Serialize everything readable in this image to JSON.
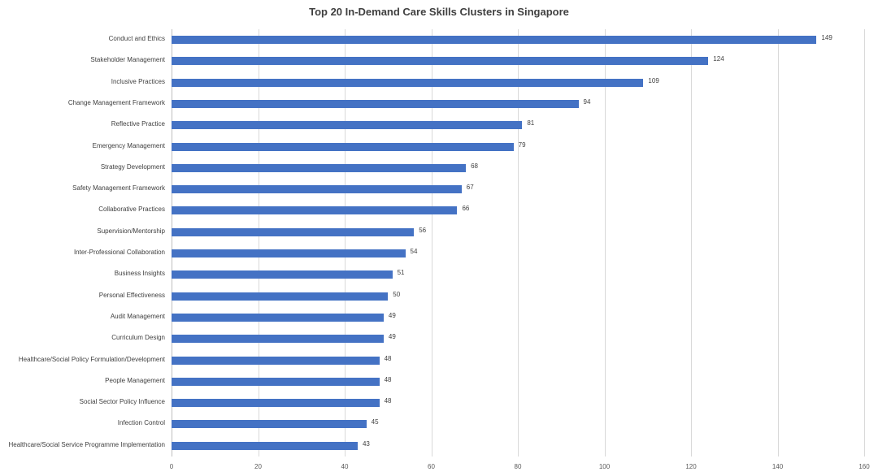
{
  "chart_data": {
    "type": "bar",
    "orientation": "horizontal",
    "title": "Top 20 In-Demand Care Skills Clusters in Singapore",
    "xlabel": "",
    "ylabel": "",
    "xlim": [
      0,
      160
    ],
    "xticks": [
      0,
      20,
      40,
      60,
      80,
      100,
      120,
      140,
      160
    ],
    "grid": "vertical",
    "legend": "none",
    "data_labels": true,
    "bar_color": "#4472C4",
    "categories": [
      "Conduct and Ethics",
      "Stakeholder Management",
      "Inclusive Practices",
      "Change Management Framework",
      "Reflective Practice",
      "Emergency Management",
      "Strategy Development",
      "Safety Management Framework",
      "Collaborative Practices",
      "Supervision/Mentorship",
      "Inter-Professional Collaboration",
      "Business Insights",
      "Personal Effectiveness",
      "Audit Management",
      "Curriculum Design",
      "Healthcare/Social Policy Formulation/Development",
      "People Management",
      "Social Sector Policy Influence",
      "Infection Control",
      "Healthcare/Social Service Programme Implementation"
    ],
    "values": [
      149,
      124,
      109,
      94,
      81,
      79,
      68,
      67,
      66,
      56,
      54,
      51,
      50,
      49,
      49,
      48,
      48,
      48,
      45,
      43
    ]
  }
}
